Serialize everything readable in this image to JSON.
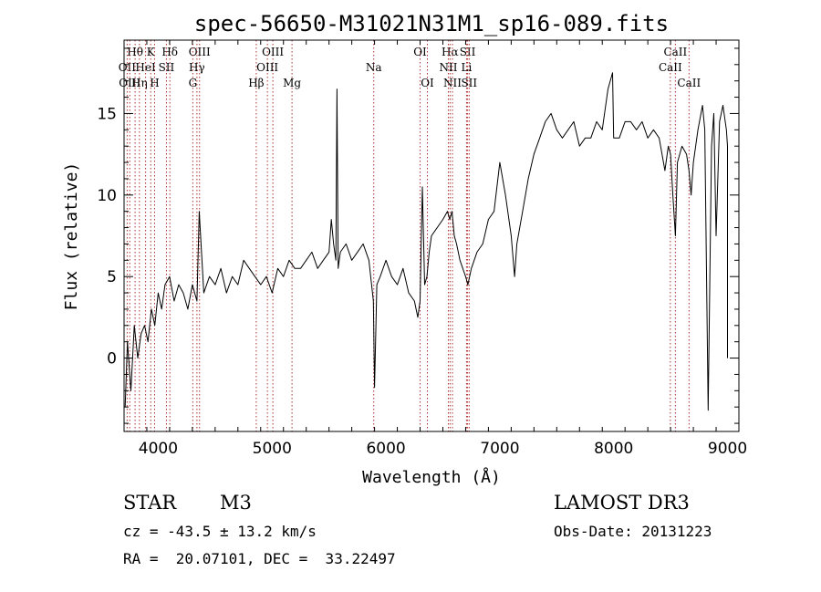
{
  "chart_data": {
    "type": "line",
    "title": "spec-56650-M31021N31M1_sp16-089.fits",
    "xlabel": "Wavelength (Å)",
    "ylabel": "Flux (relative)",
    "xlim": [
      3700,
      9100
    ],
    "ylim": [
      -4.5,
      19.5
    ],
    "xticks": [
      4000,
      5000,
      6000,
      7000,
      8000,
      9000
    ],
    "yticks": [
      0,
      5,
      10,
      15
    ],
    "series": [
      {
        "name": "spectrum",
        "x": [
          3710,
          3730,
          3760,
          3790,
          3820,
          3850,
          3880,
          3910,
          3940,
          3970,
          4000,
          4030,
          4060,
          4100,
          4140,
          4180,
          4220,
          4260,
          4300,
          4340,
          4360,
          4400,
          4450,
          4500,
          4550,
          4600,
          4650,
          4700,
          4750,
          4800,
          4850,
          4900,
          4950,
          5000,
          5050,
          5100,
          5150,
          5200,
          5250,
          5300,
          5350,
          5400,
          5450,
          5500,
          5520,
          5540,
          5560,
          5570,
          5580,
          5600,
          5650,
          5700,
          5750,
          5800,
          5850,
          5890,
          5900,
          5920,
          5950,
          6000,
          6050,
          6100,
          6150,
          6200,
          6250,
          6280,
          6300,
          6320,
          6340,
          6360,
          6380,
          6400,
          6450,
          6500,
          6540,
          6560,
          6580,
          6600,
          6620,
          6650,
          6700,
          6720,
          6750,
          6800,
          6850,
          6900,
          6950,
          7000,
          7050,
          7100,
          7130,
          7150,
          7200,
          7250,
          7300,
          7350,
          7400,
          7450,
          7500,
          7550,
          7600,
          7650,
          7700,
          7750,
          7800,
          7850,
          7900,
          7950,
          7990,
          8000,
          8050,
          8100,
          8150,
          8200,
          8250,
          8300,
          8350,
          8400,
          8450,
          8480,
          8500,
          8520,
          8542,
          8560,
          8600,
          8640,
          8662,
          8680,
          8700,
          8740,
          8780,
          8800,
          8830,
          8860,
          8880,
          8900,
          8930,
          8960,
          8990,
          9000,
          9000
        ],
        "values": [
          -3.0,
          1.0,
          -2.0,
          2.0,
          0.0,
          1.5,
          2.0,
          1.0,
          3.0,
          2.0,
          4.0,
          3.0,
          4.5,
          5.0,
          3.5,
          4.5,
          4.0,
          3.0,
          4.5,
          3.5,
          9.0,
          4.0,
          5.0,
          4.5,
          5.5,
          4.0,
          5.0,
          4.5,
          6.0,
          5.5,
          5.0,
          4.5,
          5.0,
          4.0,
          5.5,
          5.0,
          6.0,
          5.5,
          5.5,
          6.0,
          6.5,
          5.5,
          6.0,
          6.5,
          8.5,
          7.0,
          6.0,
          16.5,
          5.5,
          6.5,
          7.0,
          6.0,
          6.5,
          7.0,
          6.0,
          3.5,
          -1.8,
          4.5,
          5.0,
          6.0,
          5.0,
          4.5,
          5.5,
          4.0,
          3.5,
          2.5,
          3.5,
          10.5,
          4.5,
          5.0,
          6.5,
          7.5,
          8.0,
          8.5,
          9.0,
          8.5,
          9.0,
          7.5,
          7.0,
          6.0,
          5.0,
          4.5,
          5.5,
          6.5,
          7.0,
          8.5,
          9.0,
          12.0,
          10.0,
          7.5,
          5.0,
          7.0,
          9.0,
          11.0,
          12.5,
          13.5,
          14.5,
          15.0,
          14.0,
          13.5,
          14.0,
          14.5,
          13.0,
          13.5,
          13.5,
          14.5,
          14.0,
          16.5,
          17.5,
          13.5,
          13.5,
          14.5,
          14.5,
          14.0,
          14.5,
          13.5,
          14.0,
          13.5,
          11.5,
          13.0,
          12.5,
          10.0,
          7.5,
          12.0,
          13.0,
          12.5,
          11.5,
          10.0,
          12.0,
          14.0,
          15.5,
          14.0,
          -3.2,
          13.0,
          15.0,
          7.5,
          14.5,
          15.5,
          14.0,
          13.0,
          0.0
        ]
      }
    ],
    "line_markers": [
      {
        "label": "Hθ",
        "x": 3797,
        "row": 0
      },
      {
        "label": "K",
        "x": 3934,
        "row": 0
      },
      {
        "label": "Hδ",
        "x": 4102,
        "row": 0
      },
      {
        "label": "OIII",
        "x": 4363,
        "row": 0
      },
      {
        "label": "OIII",
        "x": 5007,
        "row": 0
      },
      {
        "label": "OI",
        "x": 6300,
        "row": 0
      },
      {
        "label": "Hα",
        "x": 6563,
        "row": 0
      },
      {
        "label": "SII",
        "x": 6717,
        "row": 0
      },
      {
        "label": "CaII",
        "x": 8542,
        "row": 0
      },
      {
        "label": "OII",
        "x": 3727,
        "row": 1
      },
      {
        "label": "HeI",
        "x": 3889,
        "row": 1
      },
      {
        "label": "SII",
        "x": 4072,
        "row": 1
      },
      {
        "label": "Hγ",
        "x": 4340,
        "row": 1
      },
      {
        "label": "OIII",
        "x": 4959,
        "row": 1
      },
      {
        "label": "Na",
        "x": 5893,
        "row": 1
      },
      {
        "label": "NII",
        "x": 6548,
        "row": 1
      },
      {
        "label": "Li",
        "x": 6708,
        "row": 1
      },
      {
        "label": "CaII",
        "x": 8498,
        "row": 1
      },
      {
        "label": "OIII",
        "x": 3750,
        "row": 2
      },
      {
        "label": "Hη",
        "x": 3835,
        "row": 2
      },
      {
        "label": "H",
        "x": 3968,
        "row": 2
      },
      {
        "label": "G",
        "x": 4304,
        "row": 2
      },
      {
        "label": "Hβ",
        "x": 4861,
        "row": 2
      },
      {
        "label": "Mg",
        "x": 5175,
        "row": 2
      },
      {
        "label": "OI",
        "x": 6364,
        "row": 2
      },
      {
        "label": "NII",
        "x": 6584,
        "row": 2
      },
      {
        "label": "SII",
        "x": 6731,
        "row": 2
      },
      {
        "label": "CaII",
        "x": 8662,
        "row": 2
      }
    ]
  },
  "info": {
    "object_class": "STAR",
    "subclass": "M3",
    "survey": "LAMOST DR3",
    "redshift": "cz = -43.5 ± 13.2 km/s",
    "obs_date": "Obs-Date: 20131223",
    "coords": "RA =  20.07101, DEC =  33.22497"
  }
}
